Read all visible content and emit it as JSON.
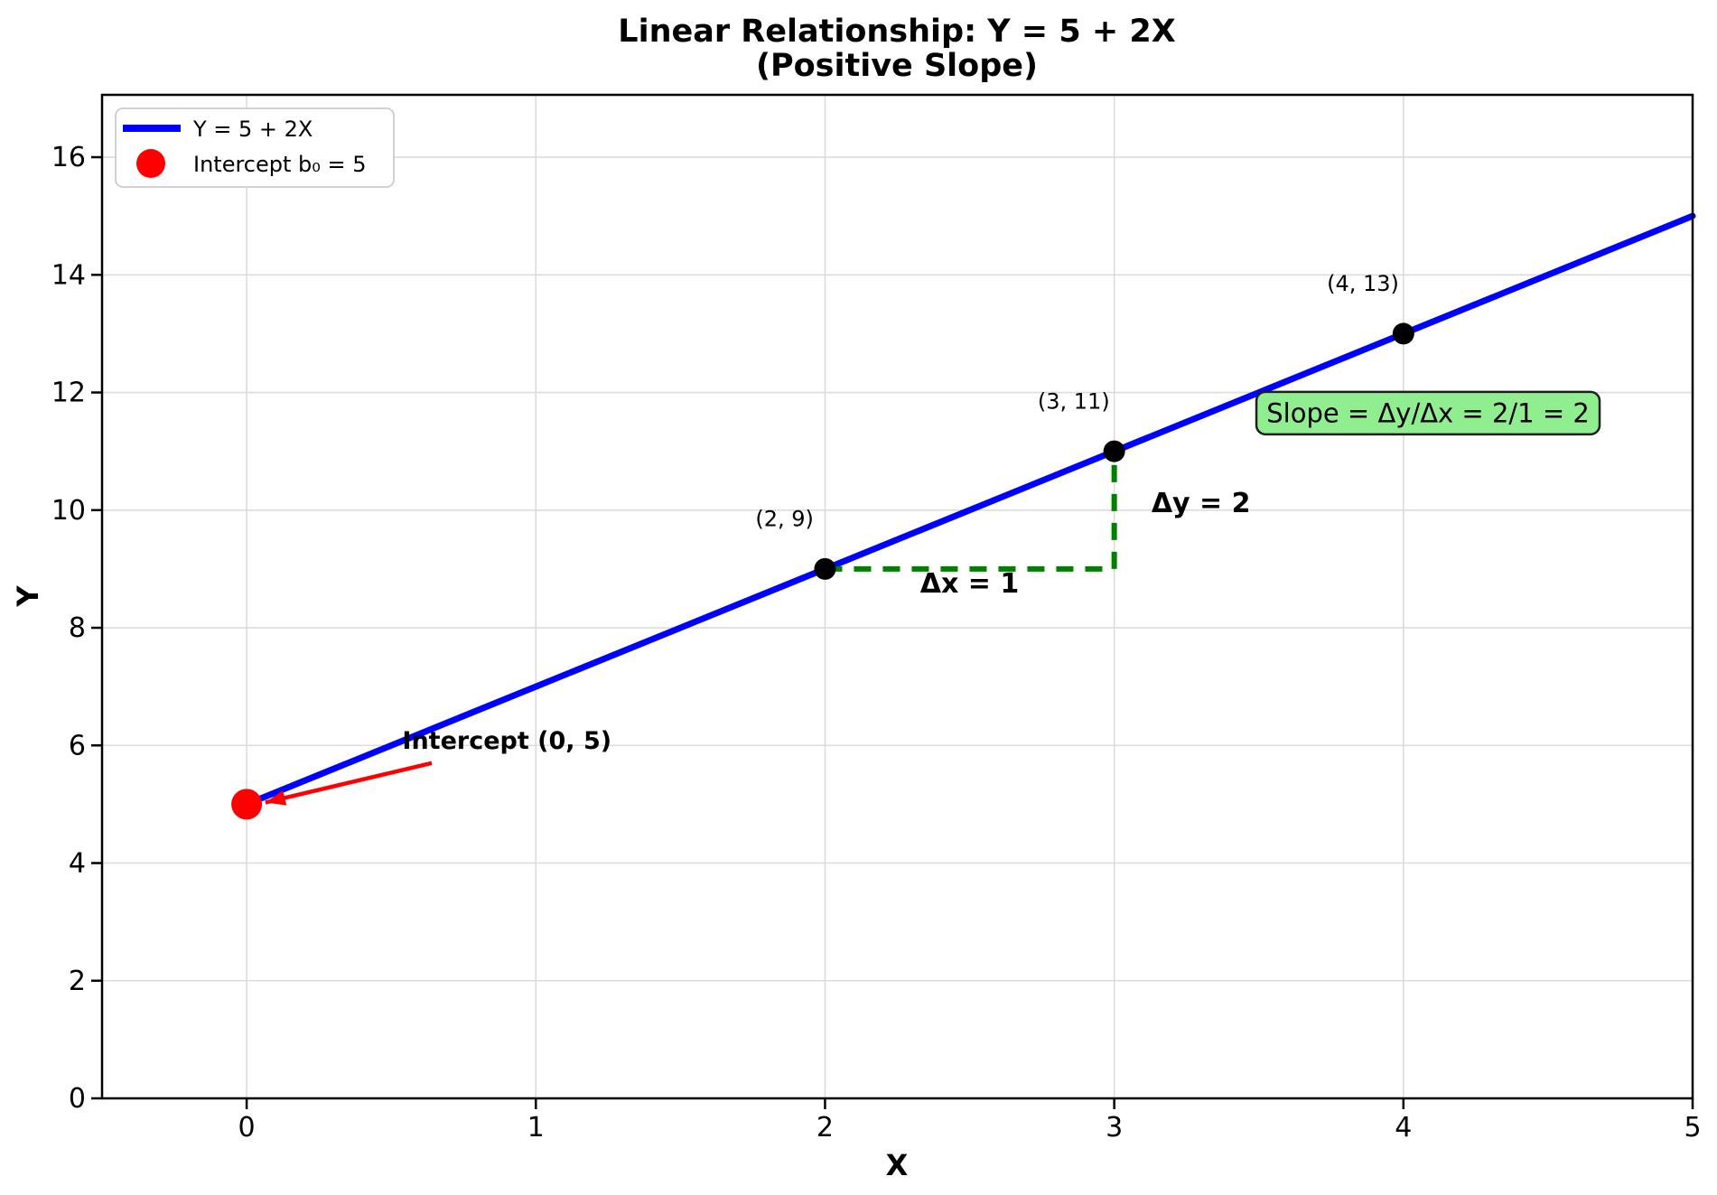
{
  "title": {
    "line1": "Linear Relationship: Y = 5 + 2X",
    "line2": "(Positive Slope)"
  },
  "legend": {
    "items": [
      {
        "label": "Y = 5 + 2X",
        "marker": "line",
        "color": "#0000ff"
      },
      {
        "label": "Intercept b₀ = 5",
        "marker": "circle",
        "color": "#ff0000"
      }
    ]
  },
  "colors": {
    "line": "#0000ff",
    "intercept": "#ff0000",
    "points": "#000000",
    "annotation_green": "#008000",
    "slope_box_fill": "#90ee90",
    "slope_box_edge": "#1f1f1f",
    "grid": "#dcdcdc",
    "frame": "#000000"
  },
  "chart_data": {
    "type": "line",
    "title": "Linear Relationship: Y = 5 + 2X (Positive Slope)",
    "xlabel": "X",
    "ylabel": "Y",
    "xlim": [
      -0.5,
      5.0
    ],
    "ylim": [
      0,
      17.06
    ],
    "x_ticks": [
      0,
      1,
      2,
      3,
      4,
      5
    ],
    "y_ticks": [
      0,
      2,
      4,
      6,
      8,
      10,
      12,
      14,
      16
    ],
    "grid": true,
    "legend_position": "upper left",
    "series": [
      {
        "name": "Y = 5 + 2X",
        "color": "#0000ff",
        "slope": 2,
        "intercept": 5,
        "x": [
          0,
          5
        ],
        "y": [
          5,
          15
        ]
      }
    ],
    "points": [
      {
        "x": 2,
        "y": 9,
        "label": "(2, 9)"
      },
      {
        "x": 3,
        "y": 11,
        "label": "(3, 11)"
      },
      {
        "x": 4,
        "y": 13,
        "label": "(4, 13)"
      }
    ],
    "intercept_point": {
      "x": 0,
      "y": 5,
      "color": "#ff0000"
    },
    "slope_triangle": {
      "start": {
        "x": 2,
        "y": 9
      },
      "corner": {
        "x": 3,
        "y": 9
      },
      "end": {
        "x": 3,
        "y": 11
      },
      "dx_label": "Δx = 1",
      "dy_label": "Δy = 2",
      "color": "#008000"
    },
    "annotations": {
      "intercept_label": "Intercept (0, 5)",
      "intercept_text_at": [
        0.9,
        6.08
      ],
      "intercept_arrow_from": [
        0.64,
        5.7
      ],
      "intercept_arrow_to": [
        0.065,
        5.03
      ],
      "dx_at": [
        2.5,
        8.75
      ],
      "dy_at": [
        3.3,
        10.12
      ],
      "slope_box_label": "Slope = Δy/Δx = 2/1 = 2",
      "slope_box_at": [
        4.085,
        11.65
      ],
      "point_label_offset": [
        -0.14,
        0.85
      ]
    }
  }
}
